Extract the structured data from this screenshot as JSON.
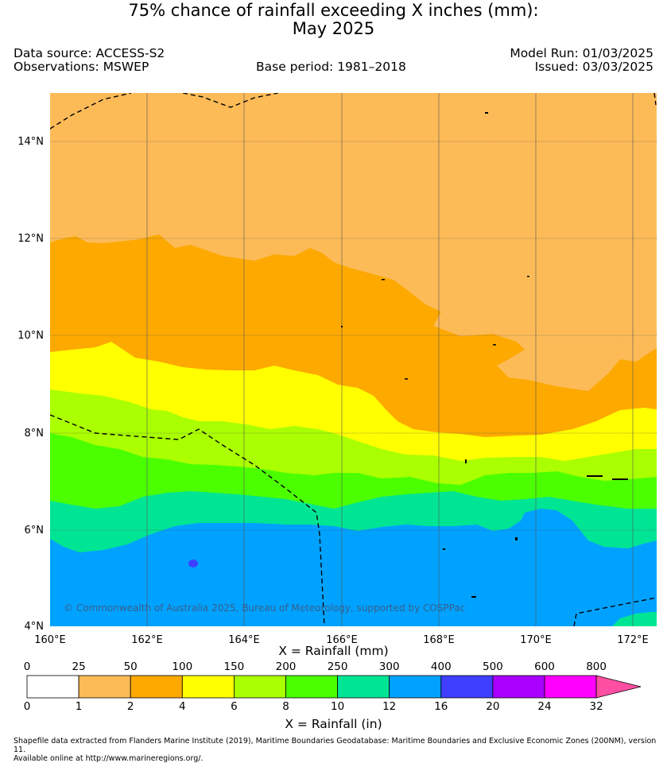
{
  "title": {
    "line1": "75% chance of rainfall exceeding X inches (mm):",
    "line2": "May 2025"
  },
  "info": {
    "data_source": "Data source: ACCESS-S2",
    "observations": "Observations: MSWEP",
    "base_period": "Base period: 1981–2018",
    "model_run": "Model Run: 01/03/2025",
    "issued": "Issued: 03/03/2025"
  },
  "map": {
    "lat_labels": [
      "14°N",
      "12°N",
      "10°N",
      "8°N",
      "6°N",
      "4°N"
    ],
    "lon_labels": [
      "160°E",
      "162°E",
      "164°E",
      "166°E",
      "168°E",
      "170°E",
      "172°E"
    ],
    "copyright": "© Commonwealth of Australia 2025, Bureau of Meteorology, supported by COSPPac",
    "region_colors": {
      "r25": "#fdbb58",
      "r50": "#fda900",
      "r100": "#ffff00",
      "r150": "#aaff00",
      "r200": "#4cff00",
      "r250": "#00e594",
      "r300": "#00a2ff",
      "r400": "#3f3fff"
    }
  },
  "colorbar": {
    "title_mm": "X = Rainfall (mm)",
    "title_in": "X = Rainfall (in)",
    "mm_ticks": [
      "0",
      "25",
      "50",
      "100",
      "150",
      "200",
      "250",
      "300",
      "400",
      "500",
      "600",
      "800"
    ],
    "in_ticks": [
      "0",
      "1",
      "2",
      "4",
      "6",
      "8",
      "10",
      "12",
      "16",
      "20",
      "24",
      "32"
    ],
    "colors": [
      "#ffffff",
      "#fdbb58",
      "#fda900",
      "#ffff00",
      "#aaff00",
      "#4cff00",
      "#00e594",
      "#00a2ff",
      "#3f3fff",
      "#a900ff",
      "#ff00ff",
      "#ff4fa2"
    ]
  },
  "footer": {
    "line1": "Shapefile data extracted from Flanders Marine Institute (2019), Maritime Boundaries Geodatabase: Maritime Boundaries and Exclusive Economic Zones (200NM), version 11.",
    "line2": "Available online at http://www.marineregions.org/."
  }
}
